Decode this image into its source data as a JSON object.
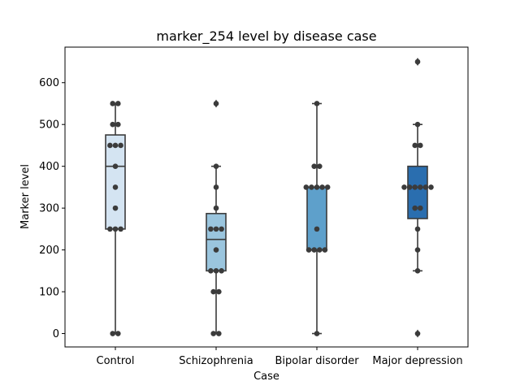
{
  "chart_data": {
    "type": "box",
    "title": "marker_254 level by disease case",
    "xlabel": "Case",
    "ylabel": "Marker level",
    "ylim": [
      -32,
      685
    ],
    "yticks": [
      0,
      100,
      200,
      300,
      400,
      500,
      600
    ],
    "grid": false,
    "legend": "none",
    "categories": [
      "Control",
      "Schizophrenia",
      "Bipolar disorder",
      "Major depression"
    ],
    "colors": [
      "#d4e4f2",
      "#9ac5de",
      "#5ea0cb",
      "#2a6eaf"
    ],
    "boxes": [
      {
        "q1": 250,
        "median": 400,
        "q3": 475,
        "whisker_low": 0,
        "whisker_high": 550,
        "outliers": []
      },
      {
        "q1": 150,
        "median": 225,
        "q3": 287,
        "whisker_low": 0,
        "whisker_high": 400,
        "outliers": [
          550
        ]
      },
      {
        "q1": 200,
        "median": 350,
        "q3": 350,
        "whisker_low": 0,
        "whisker_high": 550,
        "outliers": []
      },
      {
        "q1": 275,
        "median": 350,
        "q3": 400,
        "whisker_low": 150,
        "whisker_high": 500,
        "outliers": [
          650,
          0
        ]
      }
    ],
    "points": [
      [
        550,
        550,
        500,
        500,
        450,
        450,
        450,
        400,
        350,
        300,
        250,
        250,
        250,
        0,
        0
      ],
      [
        550,
        400,
        350,
        300,
        250,
        250,
        250,
        200,
        150,
        150,
        150,
        100,
        100,
        0,
        0
      ],
      [
        550,
        400,
        400,
        350,
        350,
        350,
        350,
        350,
        250,
        200,
        200,
        200,
        200,
        0
      ],
      [
        650,
        500,
        450,
        450,
        350,
        350,
        350,
        350,
        350,
        350,
        300,
        300,
        250,
        200,
        150,
        0
      ]
    ]
  }
}
